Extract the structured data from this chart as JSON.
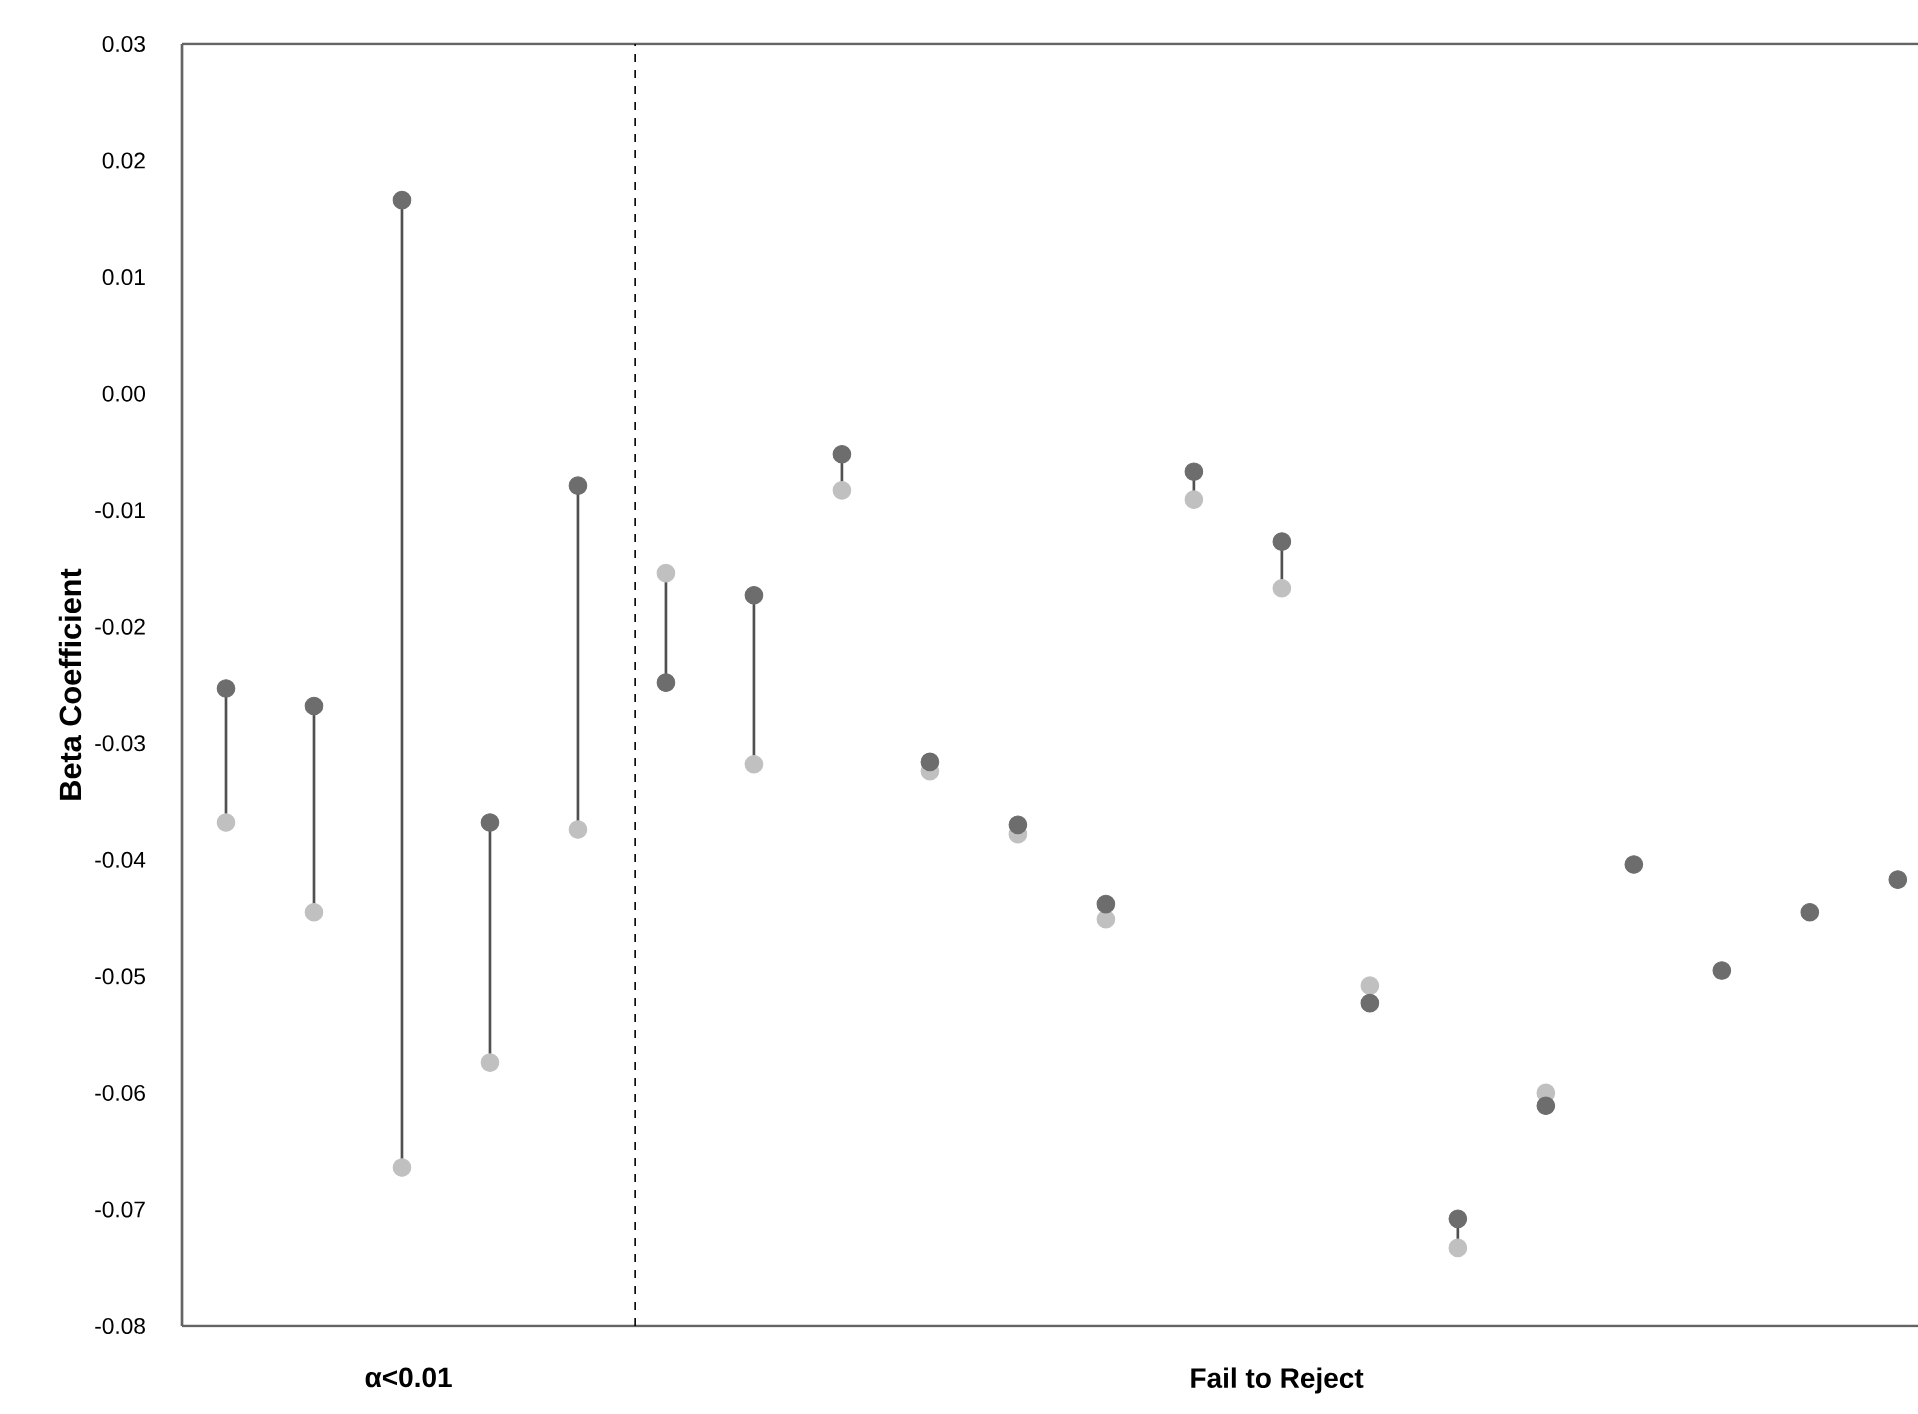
{
  "chart_data": {
    "type": "scatter",
    "ylabel": "Beta Coefficient",
    "marker": "circle",
    "categories": [
      null,
      null,
      null,
      null,
      null,
      null,
      null,
      null,
      null,
      null,
      null,
      null,
      null,
      null,
      null,
      null,
      null,
      null,
      null,
      null
    ],
    "annotations": [
      "α<0.01",
      "Fail to Reject"
    ],
    "ylim": [
      -0.08,
      0.03
    ],
    "yticks": [
      {
        "value": -0.08,
        "label": "-0.08"
      },
      {
        "value": -0.07,
        "label": "-0.07"
      },
      {
        "value": -0.06,
        "label": "-0.06"
      },
      {
        "value": -0.05,
        "label": "-0.05"
      },
      {
        "value": -0.04,
        "label": "-0.04"
      },
      {
        "value": -0.03,
        "label": "-0.03"
      },
      {
        "value": -0.02,
        "label": "-0.02"
      },
      {
        "value": -0.01,
        "label": "-0.01"
      },
      {
        "value": 0,
        "label": "0.00"
      },
      {
        "value": 0.01,
        "label": "0.01"
      },
      {
        "value": 0.02,
        "label": "0.02"
      },
      {
        "value": 0.03,
        "label": "0.03"
      }
    ],
    "series": [
      {
        "color": "#c0c0c0",
        "values": [
          -0.0368,
          -0.0445,
          -0.0664,
          -0.0574,
          -0.0374,
          -0.0154,
          -0.0318,
          -0.0083,
          -0.0324,
          -0.0378,
          -0.0451,
          -0.0091,
          -0.0167,
          -0.0508,
          -0.0733,
          -0.06,
          null,
          null,
          null,
          null
        ]
      },
      {
        "color": "#6d6d6d",
        "values": [
          -0.0253,
          -0.0268,
          0.0166,
          -0.0368,
          -0.0079,
          -0.0248,
          -0.0173,
          -0.0052,
          -0.0316,
          -0.037,
          -0.0438,
          -0.0067,
          -0.0127,
          -0.0523,
          -0.0708,
          -0.0611,
          -0.0404,
          -0.0495,
          -0.0445,
          -0.0417
        ]
      }
    ]
  }
}
